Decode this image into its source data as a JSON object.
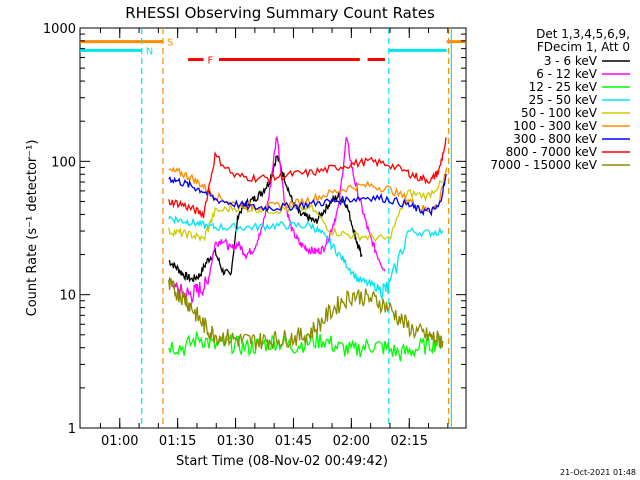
{
  "chart_data": {
    "type": "line",
    "title": "RHESSI Observing Summary Count Rates",
    "xlabel": "Start Time (08-Nov-02 00:49:42)",
    "ylabel": "Count Rate (s⁻¹ detector⁻¹)",
    "yscale": "log",
    "ylim": [
      1,
      1000
    ],
    "xlim_minutes_after_start": [
      0,
      100
    ],
    "x_tick_labels": [
      {
        "label": "01:00",
        "minute": 10.3
      },
      {
        "label": "01:15",
        "minute": 25.3
      },
      {
        "label": "01:30",
        "minute": 40.3
      },
      {
        "label": "01:45",
        "minute": 55.3
      },
      {
        "label": "02:00",
        "minute": 70.3
      },
      {
        "label": "02:15",
        "minute": 85.3
      }
    ],
    "y_tick_labels": [
      {
        "label": "1",
        "value": 1
      },
      {
        "label": "10",
        "value": 10
      },
      {
        "label": "100",
        "value": 100
      },
      {
        "label": "1000",
        "value": 1000
      }
    ],
    "legend_header": [
      "Det 1,3,4,5,6,9,",
      "FDecim 1, Att 0"
    ],
    "legend_position": "right",
    "grid": false,
    "footer_date": "21-Oct-2021 01:48",
    "flags": [
      {
        "label": "S",
        "color": "#ff8c00",
        "value": 790,
        "segments": [
          [
            0,
            21.5
          ],
          [
            95,
            100
          ]
        ]
      },
      {
        "label": "N",
        "color": "#00e5ee",
        "value": 680,
        "segments": [
          [
            0,
            16
          ],
          [
            80,
            95
          ]
        ]
      },
      {
        "label": "F",
        "color": "#ff0000",
        "value": 580,
        "segments": [
          [
            28,
            32
          ],
          [
            36,
            72.5
          ],
          [
            74.5,
            79
          ]
        ]
      }
    ],
    "markers": [
      {
        "color": "#00e5ee",
        "style": "dashed",
        "minute": 16
      },
      {
        "color": "#ff8c00",
        "style": "dashed",
        "minute": 21.5
      },
      {
        "color": "#00e5ee",
        "style": "dashed",
        "minute": 80
      },
      {
        "color": "#ff8c00",
        "style": "dashed",
        "minute": 95.5
      },
      {
        "color": "#00e5ee",
        "style": "solid",
        "minute": 96.2
      }
    ],
    "series": [
      {
        "name": "3 - 6 keV",
        "color": "#000000",
        "x": [
          23,
          25,
          27,
          29,
          31,
          33,
          35,
          37,
          39,
          41,
          43,
          45,
          47,
          49,
          51,
          53,
          55,
          57,
          59,
          61,
          63,
          65,
          67,
          69,
          71,
          72,
          73
        ],
        "y": [
          18,
          16,
          14,
          13,
          14,
          18,
          21,
          15,
          14,
          40,
          48,
          52,
          58,
          70,
          110,
          75,
          50,
          40,
          38,
          35,
          42,
          50,
          55,
          48,
          30,
          23,
          20
        ]
      },
      {
        "name": "6 - 12 keV",
        "color": "#ff00ff",
        "x": [
          23,
          25,
          27,
          29,
          31,
          33,
          35,
          37,
          39,
          41,
          43,
          45,
          47,
          49,
          51,
          53,
          55,
          57,
          59,
          61,
          63,
          65,
          67,
          69,
          71,
          73,
          75,
          77,
          79
        ],
        "y": [
          13,
          11,
          10,
          10,
          11,
          12,
          24,
          26,
          22,
          24,
          20,
          22,
          30,
          55,
          160,
          50,
          30,
          24,
          22,
          21,
          22,
          30,
          45,
          150,
          75,
          45,
          28,
          20,
          15
        ]
      },
      {
        "name": "12 - 25 keV",
        "color": "#00ff00",
        "x": [
          23,
          27,
          31,
          35,
          39,
          43,
          47,
          51,
          55,
          59,
          63,
          67,
          71,
          75,
          79,
          83,
          87,
          91,
          94
        ],
        "y": [
          4.2,
          4.0,
          4.8,
          4.1,
          4.3,
          4.0,
          4.2,
          4.5,
          4.1,
          4.4,
          4.6,
          4.0,
          3.8,
          4.2,
          4.0,
          3.6,
          3.9,
          4.3,
          4.5
        ]
      },
      {
        "name": "25 - 50 keV",
        "color": "#00e5ee",
        "x": [
          23,
          26,
          29,
          32,
          35,
          40,
          45,
          50,
          55,
          60,
          63,
          66,
          69,
          72,
          75,
          78,
          80,
          85,
          90,
          94
        ],
        "y": [
          38,
          36,
          35,
          33,
          32,
          32,
          32,
          33,
          33,
          33,
          28,
          22,
          17,
          13,
          12,
          11,
          11,
          30,
          29,
          30
        ]
      },
      {
        "name": "50 - 100 keV",
        "color": "#cccc00",
        "x": [
          23,
          26,
          29,
          32,
          35,
          40,
          45,
          50,
          55,
          60,
          65,
          70,
          75,
          80,
          85,
          90,
          94
        ],
        "y": [
          30,
          29,
          28,
          26,
          42,
          45,
          44,
          43,
          44,
          45,
          30,
          28,
          27,
          26,
          58,
          55,
          70
        ]
      },
      {
        "name": "100 - 300 keV",
        "color": "#ff8c00",
        "x": [
          23,
          26,
          29,
          32,
          35,
          40,
          45,
          50,
          55,
          60,
          65,
          70,
          75,
          80,
          85,
          88,
          91,
          93,
          95
        ],
        "y": [
          85,
          82,
          75,
          65,
          55,
          48,
          46,
          46,
          48,
          52,
          58,
          64,
          66,
          62,
          52,
          45,
          43,
          48,
          90
        ]
      },
      {
        "name": "300 - 800 keV",
        "color": "#0000ff",
        "x": [
          23,
          26,
          29,
          32,
          35,
          40,
          45,
          50,
          55,
          60,
          65,
          70,
          75,
          80,
          85,
          88,
          91,
          93,
          95
        ],
        "y": [
          75,
          70,
          65,
          60,
          52,
          48,
          45,
          45,
          46,
          48,
          50,
          52,
          54,
          52,
          47,
          43,
          42,
          46,
          80
        ]
      },
      {
        "name": "800 - 7000 keV",
        "color": "#ff0000",
        "x": [
          23,
          26,
          29,
          32,
          35,
          40,
          45,
          50,
          55,
          60,
          65,
          70,
          75,
          80,
          85,
          88,
          91,
          93,
          95
        ],
        "y": [
          50,
          48,
          44,
          40,
          110,
          78,
          75,
          75,
          80,
          82,
          88,
          95,
          100,
          95,
          82,
          75,
          72,
          85,
          150
        ]
      },
      {
        "name": "7000 - 15000 keV",
        "color": "#8b8b00",
        "x": [
          23,
          25,
          27,
          29,
          31,
          33,
          35,
          38,
          41,
          44,
          47,
          50,
          53,
          56,
          59,
          62,
          65,
          68,
          71,
          74,
          77,
          80,
          83,
          86,
          89,
          91,
          93,
          94
        ],
        "y": [
          11.5,
          10.5,
          9.5,
          8.0,
          6.5,
          5.5,
          5.0,
          4.8,
          4.6,
          4.5,
          4.5,
          4.6,
          4.7,
          4.8,
          5.0,
          6.0,
          7.5,
          9.0,
          10.0,
          9.5,
          9.0,
          8.0,
          6.5,
          5.5,
          5.0,
          4.8,
          4.6,
          4.5
        ]
      }
    ]
  }
}
